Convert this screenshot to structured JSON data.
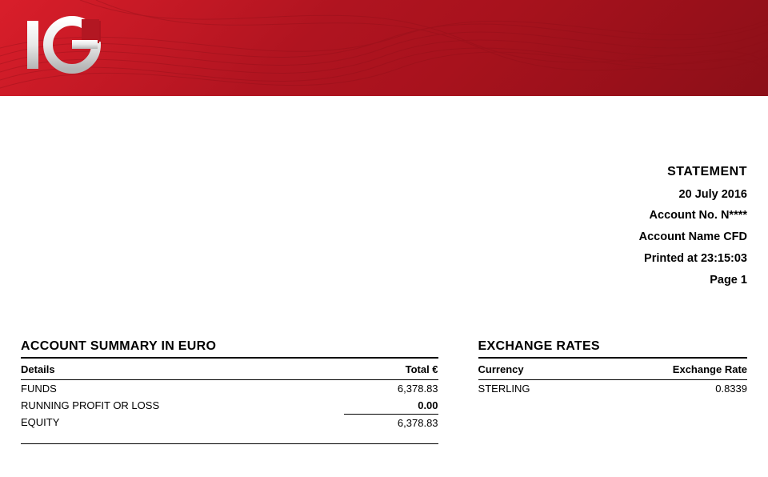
{
  "banner": {
    "bg_gradient": [
      "#d91e2a",
      "#b01420",
      "#a8121d",
      "#8c0f18"
    ],
    "wave_stroke": "#9c121c",
    "logo_text": "IG",
    "logo_fill_light": "#f2f2f2",
    "logo_fill_dark": "#b9b9b9"
  },
  "meta": {
    "title": "STATEMENT",
    "date": "20 July 2016",
    "account_no_label": "Account No.",
    "account_no_value": "N****",
    "account_name_label": "Account Name",
    "account_name_value": "CFD",
    "printed_label": "Printed at",
    "printed_value": "23:15:03",
    "page_label": "Page",
    "page_value": "1"
  },
  "summary": {
    "title": "ACCOUNT SUMMARY IN EURO",
    "col_details": "Details",
    "col_total": "Total €",
    "rows": [
      {
        "label": "FUNDS",
        "value": "6,378.83",
        "bold": false
      },
      {
        "label": "RUNNING PROFIT OR LOSS",
        "value": "0.00",
        "bold": true
      },
      {
        "label": "EQUITY",
        "value": "6,378.83",
        "bold": false,
        "rule_above": true
      }
    ]
  },
  "rates": {
    "title": "EXCHANGE RATES",
    "col_currency": "Currency",
    "col_rate": "Exchange Rate",
    "rows": [
      {
        "currency": "STERLING",
        "rate": "0.8339"
      }
    ]
  }
}
